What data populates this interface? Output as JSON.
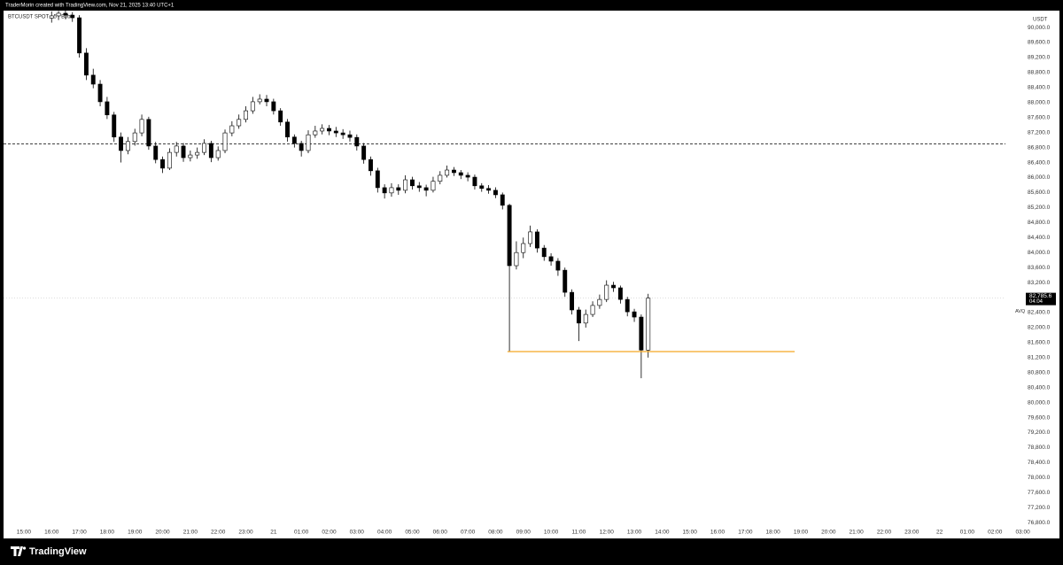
{
  "header": {
    "credit": "TraderMorin created with TradingView.com, Nov 21, 2025 13:40 UTC+1",
    "brand": "TradingView"
  },
  "chart_data": {
    "type": "candlestick",
    "symbol": "BTCUSDT SPOT · 5 · Bybit",
    "currency": "USDT",
    "marker_text": "AVQ",
    "last_price_label": "82,785.6",
    "countdown": "04:04",
    "up_color": "#ffffff",
    "down_color": "#000000",
    "wick_color": "#000000",
    "x": [
      16,
      16.25,
      16.5,
      16.75,
      17,
      17.25,
      17.5,
      17.75,
      18,
      18.25,
      18.5,
      18.75,
      19,
      19.25,
      19.5,
      19.75,
      20,
      20.25,
      20.5,
      20.75,
      21,
      21.25,
      21.5,
      21.75,
      22,
      22.25,
      22.5,
      22.75,
      23,
      23.25,
      23.5,
      23.75,
      24,
      24.25,
      24.5,
      24.75,
      25,
      25.25,
      25.5,
      25.75,
      26,
      26.25,
      26.5,
      26.75,
      27,
      27.25,
      27.5,
      27.75,
      28,
      28.25,
      28.5,
      28.75,
      29,
      29.25,
      29.5,
      29.75,
      30,
      30.25,
      30.5,
      30.75,
      31,
      31.25,
      31.5,
      31.75,
      32,
      32.25,
      32.5,
      32.75,
      33,
      33.25,
      33.5,
      33.75,
      34,
      34.25,
      34.5,
      34.75,
      35,
      35.25,
      35.5,
      35.75,
      36,
      36.25,
      36.5,
      36.75,
      37,
      37.25,
      37.5
    ],
    "open": [
      90250,
      90310,
      90380,
      90330,
      90260,
      89320,
      88730,
      88490,
      88020,
      87670,
      87080,
      86720,
      86960,
      87190,
      87550,
      86840,
      86480,
      86250,
      86670,
      86840,
      86530,
      86600,
      86670,
      86910,
      86530,
      86720,
      87190,
      87380,
      87550,
      87780,
      88020,
      88090,
      88020,
      87780,
      87480,
      87080,
      86910,
      86720,
      87140,
      87240,
      87310,
      87240,
      87190,
      87140,
      87070,
      86840,
      86480,
      86180,
      85730,
      85590,
      85730,
      85660,
      85940,
      85780,
      85730,
      85660,
      85900,
      86060,
      86200,
      86130,
      86060,
      86010,
      85780,
      85710,
      85660,
      85540,
      85260,
      83650,
      84000,
      84240,
      84550,
      84120,
      83890,
      83770,
      83530,
      82940,
      82470,
      82120,
      82350,
      82590,
      82750,
      83130,
      83060,
      82750,
      82420,
      82280,
      81400
    ],
    "high": [
      90430,
      90440,
      90450,
      90410,
      90330,
      89450,
      88900,
      88600,
      88150,
      87750,
      87200,
      87080,
      87300,
      87680,
      87620,
      86950,
      86560,
      86780,
      86950,
      86920,
      86720,
      86800,
      87020,
      86980,
      86830,
      87280,
      87500,
      87680,
      87900,
      88150,
      88220,
      88200,
      88100,
      87850,
      87560,
      87150,
      86980,
      87260,
      87380,
      87420,
      87400,
      87350,
      87290,
      87250,
      87150,
      86920,
      86560,
      86260,
      85820,
      85850,
      85820,
      86060,
      86020,
      85880,
      85810,
      86020,
      86170,
      86320,
      86280,
      86200,
      86140,
      86080,
      85850,
      85800,
      85740,
      85600,
      85300,
      84300,
      84400,
      84720,
      84620,
      84200,
      83980,
      83850,
      83600,
      83020,
      82550,
      82480,
      82700,
      82880,
      83260,
      83220,
      83120,
      82820,
      82500,
      82350,
      82900
    ],
    "low": [
      90130,
      90200,
      90240,
      90150,
      89200,
      88600,
      88380,
      87900,
      87560,
      86950,
      86400,
      86620,
      86850,
      87100,
      86740,
      86380,
      86120,
      86200,
      86560,
      86420,
      86430,
      86500,
      86600,
      86410,
      86450,
      86650,
      87100,
      87300,
      87470,
      87700,
      87950,
      87900,
      87680,
      87380,
      86960,
      86800,
      86560,
      86650,
      87060,
      87150,
      87130,
      87080,
      87030,
      86960,
      86720,
      86370,
      86050,
      85600,
      85440,
      85490,
      85540,
      85580,
      85680,
      85620,
      85500,
      85600,
      85820,
      86000,
      86040,
      85960,
      85900,
      85680,
      85620,
      85570,
      85450,
      85150,
      81360,
      83550,
      83850,
      84150,
      84000,
      83780,
      83650,
      83380,
      82820,
      82350,
      81640,
      82000,
      82280,
      82500,
      82680,
      82950,
      82640,
      82300,
      82150,
      80650,
      81200
    ],
    "close": [
      90310,
      90380,
      90330,
      90260,
      89320,
      88730,
      88490,
      88020,
      87670,
      87080,
      86720,
      86960,
      87190,
      87550,
      86840,
      86480,
      86250,
      86670,
      86840,
      86530,
      86600,
      86670,
      86910,
      86530,
      86720,
      87190,
      87380,
      87550,
      87780,
      88020,
      88090,
      88020,
      87780,
      87480,
      87080,
      86910,
      86720,
      87140,
      87240,
      87310,
      87240,
      87190,
      87140,
      87070,
      86840,
      86480,
      86180,
      85730,
      85590,
      85730,
      85660,
      85940,
      85780,
      85730,
      85660,
      85900,
      86060,
      86200,
      86130,
      86060,
      86010,
      85780,
      85710,
      85660,
      85540,
      85260,
      83650,
      84000,
      84240,
      84550,
      84120,
      83890,
      83770,
      83530,
      82940,
      82470,
      82120,
      82350,
      82590,
      82750,
      83130,
      83060,
      82750,
      82420,
      82280,
      81400,
      82785.6
    ],
    "levels": [
      {
        "value": 86900,
        "style": "dashed",
        "color": "#000000"
      }
    ],
    "segments": [
      {
        "value": 81360,
        "x": [
          32.43,
          42.78
        ],
        "color": "#f5a623"
      }
    ],
    "xlim": [
      14.3,
      52.45
    ],
    "ylim": [
      76650,
      90450
    ],
    "xticks": [
      {
        "value": 15,
        "label": "15:00"
      },
      {
        "value": 16,
        "label": "16:00"
      },
      {
        "value": 17,
        "label": "17:00"
      },
      {
        "value": 18,
        "label": "18:00"
      },
      {
        "value": 19,
        "label": "19:00"
      },
      {
        "value": 20,
        "label": "20:00"
      },
      {
        "value": 21,
        "label": "21:00"
      },
      {
        "value": 22,
        "label": "22:00"
      },
      {
        "value": 23,
        "label": "23:00"
      },
      {
        "value": 24,
        "label": "21"
      },
      {
        "value": 25,
        "label": "01:00"
      },
      {
        "value": 26,
        "label": "02:00"
      },
      {
        "value": 27,
        "label": "03:00"
      },
      {
        "value": 28,
        "label": "04:00"
      },
      {
        "value": 29,
        "label": "05:00"
      },
      {
        "value": 30,
        "label": "06:00"
      },
      {
        "value": 31,
        "label": "07:00"
      },
      {
        "value": 32,
        "label": "08:00"
      },
      {
        "value": 33,
        "label": "09:00"
      },
      {
        "value": 34,
        "label": "10:00"
      },
      {
        "value": 35,
        "label": "11:00"
      },
      {
        "value": 36,
        "label": "12:00"
      },
      {
        "value": 37,
        "label": "13:00"
      },
      {
        "value": 38,
        "label": "14:00"
      },
      {
        "value": 39,
        "label": "15:00"
      },
      {
        "value": 40,
        "label": "16:00"
      },
      {
        "value": 41,
        "label": "17:00"
      },
      {
        "value": 42,
        "label": "18:00"
      },
      {
        "value": 43,
        "label": "19:00"
      },
      {
        "value": 44,
        "label": "20:00"
      },
      {
        "value": 45,
        "label": "21:00"
      },
      {
        "value": 46,
        "label": "22:00"
      },
      {
        "value": 47,
        "label": "23:00"
      },
      {
        "value": 48,
        "label": "22"
      },
      {
        "value": 49,
        "label": "01:00"
      },
      {
        "value": 50,
        "label": "02:00"
      },
      {
        "value": 51,
        "label": "03:00"
      }
    ],
    "yticks": [
      {
        "value": 90000,
        "label": "90,000.0"
      },
      {
        "value": 89600,
        "label": "89,600.0"
      },
      {
        "value": 89200,
        "label": "89,200.0"
      },
      {
        "value": 88800,
        "label": "88,800.0"
      },
      {
        "value": 88400,
        "label": "88,400.0"
      },
      {
        "value": 88000,
        "label": "88,000.0"
      },
      {
        "value": 87600,
        "label": "87,600.0"
      },
      {
        "value": 87200,
        "label": "87,200.0"
      },
      {
        "value": 86800,
        "label": "86,800.0"
      },
      {
        "value": 86400,
        "label": "86,400.0"
      },
      {
        "value": 86000,
        "label": "86,000.0"
      },
      {
        "value": 85600,
        "label": "85,600.0"
      },
      {
        "value": 85200,
        "label": "85,200.0"
      },
      {
        "value": 84800,
        "label": "84,800.0"
      },
      {
        "value": 84400,
        "label": "84,400.0"
      },
      {
        "value": 84000,
        "label": "84,000.0"
      },
      {
        "value": 83600,
        "label": "83,600.0"
      },
      {
        "value": 83200,
        "label": "83,200.0"
      },
      {
        "value": 82800,
        "label": "82,800.0"
      },
      {
        "value": 82400,
        "label": "82,400.0"
      },
      {
        "value": 82000,
        "label": "82,000.0"
      },
      {
        "value": 81600,
        "label": "81,600.0"
      },
      {
        "value": 81200,
        "label": "81,200.0"
      },
      {
        "value": 80800,
        "label": "80,800.0"
      },
      {
        "value": 80400,
        "label": "80,400.0"
      },
      {
        "value": 80000,
        "label": "80,000.0"
      },
      {
        "value": 79600,
        "label": "79,600.0"
      },
      {
        "value": 79200,
        "label": "79,200.0"
      },
      {
        "value": 78800,
        "label": "78,800.0"
      },
      {
        "value": 78400,
        "label": "78,400.0"
      },
      {
        "value": 78000,
        "label": "78,000.0"
      },
      {
        "value": 77600,
        "label": "77,600.0"
      },
      {
        "value": 77200,
        "label": "77,200.0"
      },
      {
        "value": 76800,
        "label": "76,800.0"
      }
    ]
  }
}
